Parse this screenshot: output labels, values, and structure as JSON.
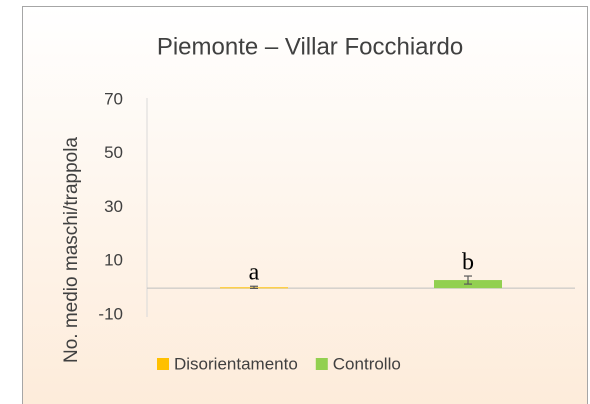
{
  "chart_data": {
    "type": "bar",
    "title": "Piemonte – Villar Focchiardo",
    "y_label": "No. medio maschi/trappola",
    "categories": [
      null,
      null
    ],
    "series": [
      {
        "name": "Disorientamento",
        "color": "#ffc000",
        "values": [
          0.3,
          null
        ],
        "errors": [
          0.4,
          null
        ]
      },
      {
        "name": "Controllo",
        "color": "#92d050",
        "values": [
          null,
          3
        ],
        "errors": [
          null,
          1.5
        ]
      }
    ],
    "annotations": [
      "a",
      "b"
    ],
    "ylim": [
      -10,
      70
    ],
    "yticks": [
      -10,
      10,
      30,
      50,
      70
    ],
    "grid": false,
    "legend": "bottom"
  }
}
